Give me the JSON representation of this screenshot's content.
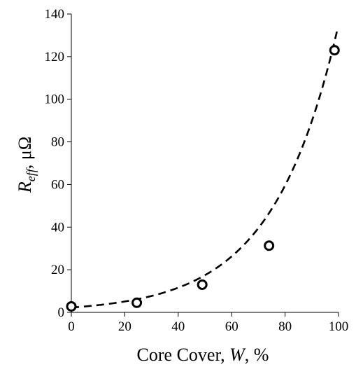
{
  "chart_data": {
    "type": "scatter",
    "title": "",
    "xlabel": {
      "prefix": "Core Cover, ",
      "var": "W",
      "suffix": ", %"
    },
    "ylabel": {
      "var": "R",
      "sub": "eff",
      "suffix": ", μΩ"
    },
    "xlim": [
      0,
      100
    ],
    "ylim": [
      0,
      140
    ],
    "xticks": [
      "0",
      "20",
      "40",
      "60",
      "80",
      "100"
    ],
    "yticks": [
      "0",
      "20",
      "40",
      "60",
      "80",
      "100",
      "120",
      "140"
    ],
    "grid": false,
    "legend": "none",
    "series": [
      {
        "kind": "markers",
        "marker": "open-circle",
        "color": "#000000",
        "x": [
          0,
          24.5,
          49,
          74,
          98.5
        ],
        "y": [
          2.8,
          4.5,
          13,
          31.3,
          123
        ]
      },
      {
        "kind": "fit-line",
        "style": "dashed",
        "color": "#000000",
        "model": "exponential",
        "a": 2.25,
        "b": 0.04095,
        "x_range": [
          0,
          99.5
        ]
      }
    ]
  }
}
